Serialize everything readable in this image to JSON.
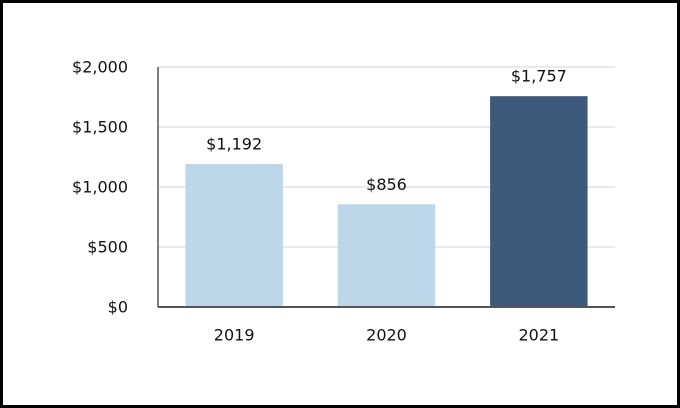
{
  "chart_data": {
    "type": "bar",
    "categories": [
      "2019",
      "2020",
      "2021"
    ],
    "values": [
      1192,
      856,
      1757
    ],
    "value_labels": [
      "$1,192",
      "$856",
      "$1,757"
    ],
    "colors": [
      "#bcd6ea",
      "#bcd6ea",
      "#3d5a7a"
    ],
    "ylim": [
      0,
      2000
    ],
    "yticks": [
      {
        "value": 0,
        "label": "$0"
      },
      {
        "value": 500,
        "label": "$500"
      },
      {
        "value": 1000,
        "label": "$1,000"
      },
      {
        "value": 1500,
        "label": "$1,500"
      },
      {
        "value": 2000,
        "label": "$2,000"
      }
    ],
    "grid": true
  }
}
